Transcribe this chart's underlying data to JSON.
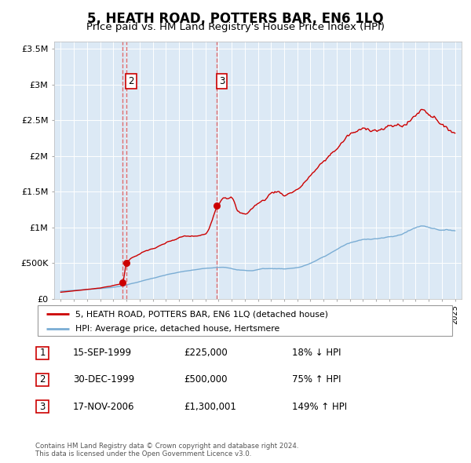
{
  "title": "5, HEATH ROAD, POTTERS BAR, EN6 1LQ",
  "subtitle": "Price paid vs. HM Land Registry's House Price Index (HPI)",
  "title_fontsize": 12,
  "subtitle_fontsize": 9.5,
  "plot_bg_color": "#dce9f5",
  "fig_bg_color": "#ffffff",
  "grid_color": "#ffffff",
  "red_line_color": "#cc0000",
  "blue_line_color": "#7aadd4",
  "sale_marker_color": "#cc0000",
  "dashed_line_color": "#e06060",
  "ylim": [
    0,
    3600000
  ],
  "yticks": [
    0,
    500000,
    1000000,
    1500000,
    2000000,
    2500000,
    3000000,
    3500000
  ],
  "ytick_labels": [
    "£0",
    "£500K",
    "£1M",
    "£1.5M",
    "£2M",
    "£2.5M",
    "£3M",
    "£3.5M"
  ],
  "sales": [
    {
      "date_num": 1999.71,
      "price": 225000,
      "label": "1"
    },
    {
      "date_num": 1999.99,
      "price": 500000,
      "label": "2"
    },
    {
      "date_num": 2006.88,
      "price": 1300001,
      "label": "3"
    }
  ],
  "legend_entries": [
    {
      "label": "5, HEATH ROAD, POTTERS BAR, EN6 1LQ (detached house)",
      "color": "#cc0000"
    },
    {
      "label": "HPI: Average price, detached house, Hertsmere",
      "color": "#7aadd4"
    }
  ],
  "table_rows": [
    {
      "num": "1",
      "date": "15-SEP-1999",
      "price": "£225,000",
      "change": "18% ↓ HPI"
    },
    {
      "num": "2",
      "date": "30-DEC-1999",
      "price": "£500,000",
      "change": "75% ↑ HPI"
    },
    {
      "num": "3",
      "date": "17-NOV-2006",
      "price": "£1,300,001",
      "change": "149% ↑ HPI"
    }
  ],
  "footer": "Contains HM Land Registry data © Crown copyright and database right 2024.\nThis data is licensed under the Open Government Licence v3.0.",
  "xlim_start": 1994.5,
  "xlim_end": 2025.5
}
